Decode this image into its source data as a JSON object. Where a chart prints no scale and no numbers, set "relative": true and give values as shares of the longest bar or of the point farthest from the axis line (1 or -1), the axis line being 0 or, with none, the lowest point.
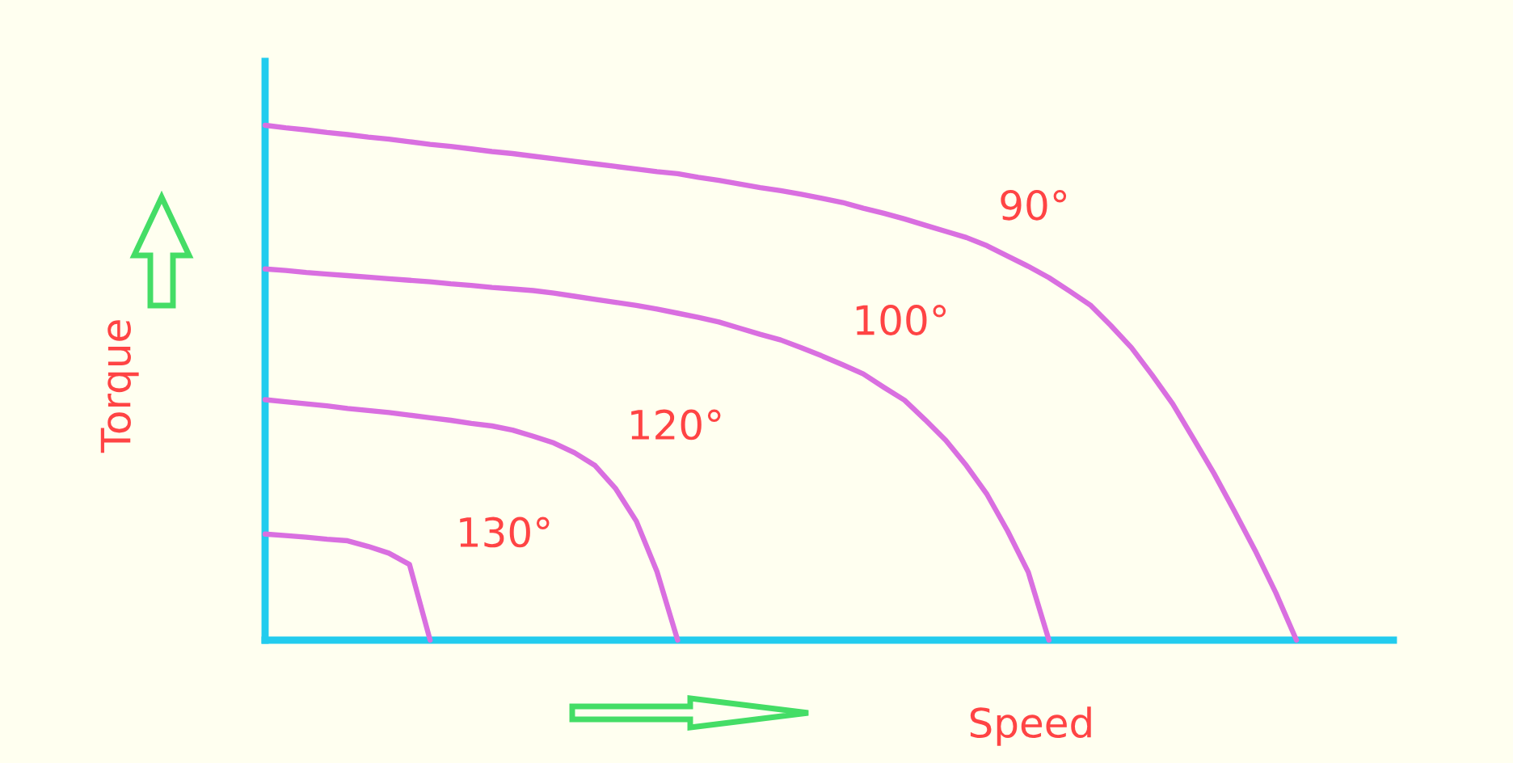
{
  "chart_data": {
    "type": "line",
    "relative": true,
    "xlabel": "Speed",
    "ylabel": "Torque",
    "categories": [
      null,
      null,
      null,
      null,
      null,
      null,
      null,
      null,
      null,
      null,
      null,
      null,
      null,
      null,
      null,
      null,
      null,
      null,
      null,
      null,
      null,
      null,
      null,
      null,
      null,
      null,
      null,
      null,
      null,
      null,
      null,
      null,
      null,
      null,
      null,
      null,
      null,
      null,
      null,
      null,
      null,
      null,
      null,
      null,
      null,
      null,
      null,
      null,
      null,
      null,
      null
    ],
    "series": [
      {
        "name": "90°",
        "color": "#d96fe0",
        "values": [
          1,
          0.995,
          0.991,
          0.986,
          0.982,
          0.977,
          0.973,
          0.968,
          0.963,
          0.959,
          0.954,
          0.949,
          0.945,
          0.94,
          0.935,
          0.93,
          0.925,
          0.92,
          0.915,
          0.91,
          0.906,
          0.899,
          0.893,
          0.886,
          0.879,
          0.873,
          0.866,
          0.858,
          0.85,
          0.839,
          0.829,
          0.818,
          0.806,
          0.794,
          0.782,
          0.766,
          0.746,
          0.726,
          0.704,
          0.678,
          0.651,
          0.611,
          0.568,
          0.515,
          0.459,
          0.392,
          0.324,
          0.25,
          0.174,
          0.092,
          0
        ]
      },
      {
        "name": "100°",
        "color": "#d96fe0",
        "values": [
          0.721,
          0.718,
          0.714,
          0.711,
          0.708,
          0.705,
          0.702,
          0.699,
          0.696,
          0.692,
          0.689,
          0.685,
          0.682,
          0.679,
          0.674,
          0.668,
          0.662,
          0.656,
          0.65,
          0.643,
          0.635,
          0.627,
          0.618,
          0.606,
          0.594,
          0.583,
          0.568,
          0.552,
          0.535,
          0.517,
          0.491,
          0.466,
          0.428,
          0.388,
          0.339,
          0.283,
          0.212,
          0.132,
          0,
          null,
          null,
          null,
          null,
          null,
          null,
          null,
          null,
          null,
          null,
          null,
          null
        ]
      },
      {
        "name": "120°",
        "color": "#d96fe0",
        "values": [
          0.467,
          0.463,
          0.459,
          0.455,
          0.45,
          0.446,
          0.442,
          0.437,
          0.432,
          0.427,
          0.421,
          0.416,
          0.408,
          0.396,
          0.383,
          0.364,
          0.339,
          0.294,
          0.231,
          0.133,
          0,
          null,
          null,
          null,
          null,
          null,
          null,
          null,
          null,
          null,
          null,
          null,
          null,
          null,
          null,
          null,
          null,
          null,
          null,
          null,
          null,
          null,
          null,
          null,
          null,
          null,
          null,
          null,
          null,
          null,
          null
        ]
      },
      {
        "name": "130°",
        "color": "#d96fe0",
        "values": [
          0.206,
          0.203,
          0.2,
          0.196,
          0.193,
          0.182,
          0.169,
          0.147,
          0,
          null,
          null,
          null,
          null,
          null,
          null,
          null,
          null,
          null,
          null,
          null,
          null,
          null,
          null,
          null,
          null,
          null,
          null,
          null,
          null,
          null,
          null,
          null,
          null,
          null,
          null,
          null,
          null,
          null,
          null,
          null,
          null,
          null,
          null,
          null,
          null,
          null,
          null,
          null,
          null,
          null,
          null
        ]
      }
    ]
  }
}
